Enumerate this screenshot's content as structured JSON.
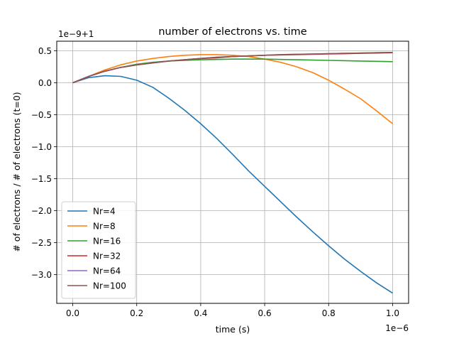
{
  "chart_data": {
    "type": "line",
    "title": "number of electrons vs. time",
    "xlabel": "time (s)",
    "ylabel": "# of electrons / # of electrons (t=0)",
    "x_offset_text": "1e−6",
    "y_offset_text": "1e−9+1",
    "xlim": [
      -0.05,
      1.05
    ],
    "ylim": [
      -3.45,
      0.65
    ],
    "xticks": [
      0.0,
      0.2,
      0.4,
      0.6,
      0.8,
      1.0
    ],
    "xtick_labels": [
      "0.0",
      "0.2",
      "0.4",
      "0.6",
      "0.8",
      "1.0"
    ],
    "yticks": [
      0.5,
      0.0,
      -0.5,
      -1.0,
      -1.5,
      -2.0,
      -2.5,
      -3.0
    ],
    "ytick_labels": [
      "0.5",
      "0.0",
      "−0.5",
      "−1.0",
      "−1.5",
      "−2.0",
      "−2.5",
      "−3.0"
    ],
    "grid": true,
    "legend_position": "lower-left",
    "x": [
      0.0,
      0.05,
      0.1,
      0.15,
      0.2,
      0.25,
      0.3,
      0.35,
      0.4,
      0.45,
      0.5,
      0.55,
      0.6,
      0.65,
      0.7,
      0.75,
      0.8,
      0.85,
      0.9,
      0.95,
      1.0
    ],
    "series": [
      {
        "name": "Nr=4",
        "color": "#1f77b4",
        "values": [
          0.0,
          0.08,
          0.11,
          0.1,
          0.04,
          -0.07,
          -0.24,
          -0.43,
          -0.64,
          -0.87,
          -1.12,
          -1.38,
          -1.62,
          -1.86,
          -2.1,
          -2.33,
          -2.55,
          -2.76,
          -2.95,
          -3.13,
          -3.29
        ]
      },
      {
        "name": "Nr=8",
        "color": "#ff7f0e",
        "values": [
          0.0,
          0.1,
          0.2,
          0.28,
          0.34,
          0.38,
          0.41,
          0.43,
          0.44,
          0.44,
          0.43,
          0.41,
          0.37,
          0.32,
          0.25,
          0.16,
          0.04,
          -0.1,
          -0.25,
          -0.44,
          -0.64
        ]
      },
      {
        "name": "Nr=16",
        "color": "#2ca02c",
        "values": [
          0.0,
          0.1,
          0.18,
          0.24,
          0.29,
          0.32,
          0.34,
          0.35,
          0.36,
          0.365,
          0.37,
          0.37,
          0.37,
          0.365,
          0.36,
          0.355,
          0.35,
          0.345,
          0.34,
          0.335,
          0.33
        ]
      },
      {
        "name": "Nr=32",
        "color": "#d62728",
        "values": [
          0.0,
          0.1,
          0.18,
          0.24,
          0.28,
          0.31,
          0.34,
          0.36,
          0.38,
          0.39,
          0.41,
          0.42,
          0.43,
          0.435,
          0.44,
          0.445,
          0.45,
          0.455,
          0.46,
          0.465,
          0.47
        ]
      },
      {
        "name": "Nr=64",
        "color": "#9467bd",
        "values": [
          0.0,
          0.1,
          0.18,
          0.24,
          0.28,
          0.31,
          0.34,
          0.36,
          0.38,
          0.4,
          0.41,
          0.42,
          0.43,
          0.44,
          0.445,
          0.45,
          0.455,
          0.46,
          0.465,
          0.47,
          0.475
        ]
      },
      {
        "name": "Nr=100",
        "color": "#8c564b",
        "values": [
          0.0,
          0.1,
          0.18,
          0.24,
          0.28,
          0.31,
          0.34,
          0.36,
          0.38,
          0.4,
          0.41,
          0.42,
          0.43,
          0.44,
          0.445,
          0.45,
          0.455,
          0.46,
          0.465,
          0.47,
          0.475
        ]
      }
    ]
  }
}
